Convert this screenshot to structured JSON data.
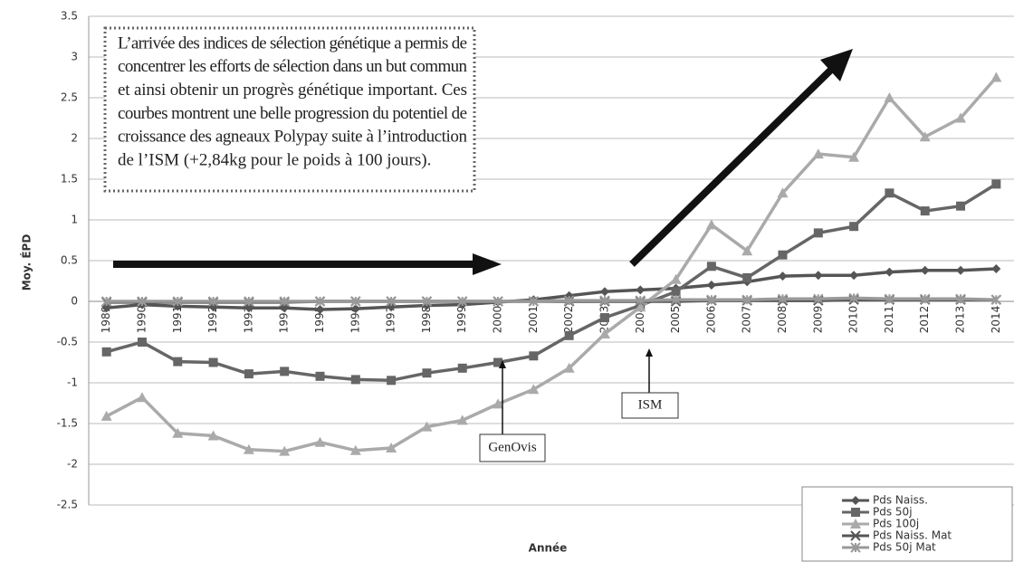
{
  "chart_data": {
    "type": "line",
    "y_label": "Moy. ÉPD",
    "x_label": "Année",
    "categories": [
      "1989",
      "1990",
      "1991",
      "1992",
      "1993",
      "1994",
      "1995",
      "1996",
      "1997",
      "1998",
      "1999",
      "2000",
      "2001",
      "2002",
      "2003",
      "2004",
      "2005",
      "2006",
      "2007",
      "2008",
      "2009",
      "2010",
      "2011",
      "2012",
      "2013",
      "2014"
    ],
    "series": [
      {
        "name": "Pds Naiss.",
        "color": "#555555",
        "marker": "diamond",
        "values": [
          -0.08,
          -0.04,
          -0.06,
          -0.07,
          -0.08,
          -0.08,
          -0.1,
          -0.09,
          -0.07,
          -0.05,
          -0.04,
          -0.01,
          0.02,
          0.07,
          0.12,
          0.14,
          0.16,
          0.2,
          0.24,
          0.31,
          0.32,
          0.32,
          0.36,
          0.38,
          0.38,
          0.4
        ]
      },
      {
        "name": "Pds 50j",
        "color": "#666666",
        "marker": "square",
        "values": [
          -0.62,
          -0.5,
          -0.74,
          -0.75,
          -0.89,
          -0.86,
          -0.92,
          -0.96,
          -0.97,
          -0.88,
          -0.82,
          -0.75,
          -0.67,
          -0.42,
          -0.2,
          -0.05,
          0.12,
          0.43,
          0.29,
          0.57,
          0.84,
          0.92,
          1.33,
          1.11,
          1.17,
          1.44
        ]
      },
      {
        "name": "Pds 100j",
        "color": "#aaaaaa",
        "marker": "triangle",
        "values": [
          -1.41,
          -1.18,
          -1.62,
          -1.65,
          -1.82,
          -1.84,
          -1.73,
          -1.83,
          -1.8,
          -1.54,
          -1.46,
          -1.26,
          -1.08,
          -0.82,
          -0.4,
          -0.07,
          0.27,
          0.94,
          0.62,
          1.33,
          1.81,
          1.77,
          2.5,
          2.02,
          2.25,
          2.75
        ]
      },
      {
        "name": "Pds Naiss. Mat",
        "color": "#555555",
        "marker": "x",
        "values": [
          -0.01,
          -0.01,
          -0.01,
          -0.01,
          -0.01,
          -0.01,
          0,
          0,
          0,
          0,
          0,
          0,
          0,
          0,
          0,
          0,
          0,
          0.01,
          0.01,
          0.01,
          0.01,
          0.02,
          0.02,
          0.02,
          0.02,
          0.02
        ]
      },
      {
        "name": "Pds 50j Mat",
        "color": "#999999",
        "marker": "star",
        "values": [
          0,
          0,
          0,
          0,
          0,
          0,
          0,
          0,
          0,
          0,
          0,
          0,
          0,
          0.01,
          0.01,
          0.01,
          0.02,
          0.02,
          0.02,
          0.03,
          0.03,
          0.04,
          0.03,
          0.03,
          0.03,
          0.02
        ]
      }
    ],
    "ylim": [
      -2.5,
      3.5
    ],
    "yticks": [
      3.5,
      3,
      2.5,
      2,
      1.5,
      1,
      0.5,
      0,
      -0.5,
      -1,
      -1.5,
      -2,
      -2.5
    ],
    "grid": true,
    "annotation_lines": [
      "L’arrivée des indices de sélection génétique a permis de",
      "concentrer les efforts de sélection dans un but commun",
      "et ainsi obtenir un progrès génétique important. Ces",
      "courbes montrent une belle progression du potentiel de",
      "croissance des agneaux Polypay suite à l’introduction",
      "de l’ISM (+2,84kg pour le poids à 100 jours)."
    ],
    "callouts": [
      "GenOvis",
      "ISM"
    ]
  }
}
